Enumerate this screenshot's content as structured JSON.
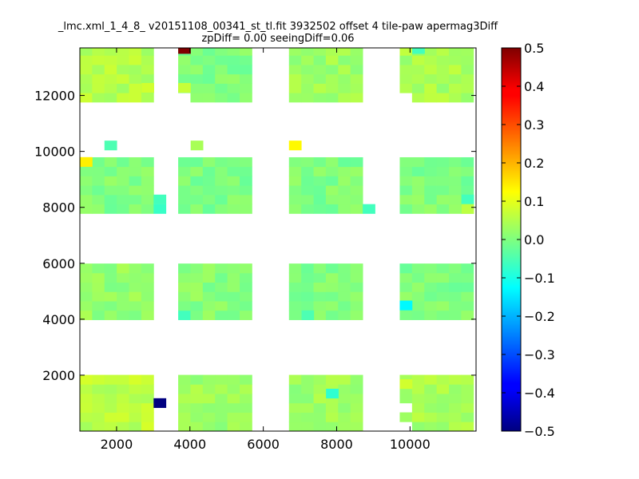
{
  "chart_data": {
    "type": "heatmap",
    "title_line1": "_lmc.xml_1_4_8_ v20151108_00341_st_tl.fit 3932502 offset 4 tile-paw apermag3Diff",
    "title_line2": "zpDiff= 0.00 seeingDiff=0.06",
    "xlabel": "",
    "ylabel": "",
    "xlim": [
      1000,
      11800
    ],
    "ylim": [
      0,
      13700
    ],
    "x_ticks": [
      2000,
      4000,
      6000,
      8000,
      10000
    ],
    "y_ticks": [
      2000,
      4000,
      6000,
      8000,
      10000,
      12000
    ],
    "colorbar": {
      "colormap": "jet",
      "range": [
        -0.5,
        0.5
      ],
      "ticks": [
        "0.5",
        "0.4",
        "0.3",
        "0.2",
        "0.1",
        "0.0",
        "−0.1",
        "−0.2",
        "−0.3",
        "−0.4",
        "−0.5"
      ]
    },
    "cell_size": [
      335,
      335
    ],
    "column_groups": [
      {
        "x_start": 1000,
        "cols": 6
      },
      {
        "x_start": 3680,
        "cols": 6
      },
      {
        "x_start": 6700,
        "cols": 6
      },
      {
        "x_start": 9720,
        "cols": 6
      }
    ],
    "row_groups": [
      {
        "y_start": 0,
        "rows": 6
      },
      {
        "y_start": 3980,
        "rows": 6
      },
      {
        "y_start": 7780,
        "rows": 6
      },
      {
        "y_start": 11760,
        "rows": 6
      }
    ],
    "base_value": 0.0,
    "group_values": [
      [
        0.06,
        0.03,
        0.03,
        0.04
      ],
      [
        0.02,
        0.01,
        0.0,
        0.0
      ],
      [
        0.0,
        0.0,
        0.0,
        0.0
      ],
      [
        0.05,
        0.0,
        0.03,
        0.04
      ]
    ],
    "special_cells": [
      {
        "x": 3680,
        "y": 13500,
        "value": 0.5
      },
      {
        "x": 3010,
        "y": 840,
        "value": -0.5
      },
      {
        "x": 9720,
        "y": 4330,
        "value": -0.13
      },
      {
        "x": 1000,
        "y": 9460,
        "value": 0.14
      },
      {
        "x": 6700,
        "y": 10050,
        "value": 0.13
      },
      {
        "x": 1670,
        "y": 10050,
        "value": -0.05
      },
      {
        "x": 4020,
        "y": 10050,
        "value": 0.04
      },
      {
        "x": 3010,
        "y": 7780,
        "value": -0.07
      },
      {
        "x": 3010,
        "y": 8120,
        "value": -0.06
      },
      {
        "x": 8710,
        "y": 7780,
        "value": -0.06
      },
      {
        "x": 7710,
        "y": 1180,
        "value": -0.08
      },
      {
        "x": 3680,
        "y": 3980,
        "value": -0.06
      },
      {
        "x": 7040,
        "y": 3980,
        "value": -0.05
      },
      {
        "x": 2680,
        "y": 12110,
        "value": 0.08
      },
      {
        "x": 3680,
        "y": 12110,
        "value": 0.07
      },
      {
        "x": 11400,
        "y": 8120,
        "value": -0.06
      },
      {
        "x": 11400,
        "y": 7780,
        "value": 0.06
      },
      {
        "x": 10060,
        "y": 13500,
        "value": -0.06
      },
      {
        "x": 9720,
        "y": 1520,
        "value": 0.08
      }
    ],
    "missing_cells": [
      {
        "x": 3010,
        "y": 0
      },
      {
        "x": 3010,
        "y": 1520
      },
      {
        "x": 3010,
        "y": 1860
      },
      {
        "x": 3010,
        "y": 4330
      },
      {
        "x": 3010,
        "y": 4670
      },
      {
        "x": 3010,
        "y": 5010
      },
      {
        "x": 3010,
        "y": 5350
      },
      {
        "x": 3010,
        "y": 5690
      },
      {
        "x": 3680,
        "y": 4670
      },
      {
        "x": 3680,
        "y": 5010
      },
      {
        "x": 3680,
        "y": 5350
      },
      {
        "x": 3680,
        "y": 5690
      },
      {
        "x": 3680,
        "y": 11760
      },
      {
        "x": 3680,
        "y": 12450
      },
      {
        "x": 3680,
        "y": 12790
      },
      {
        "x": 3680,
        "y": 13130
      },
      {
        "x": 3680,
        "y": 8120
      },
      {
        "x": 3680,
        "y": 8460
      },
      {
        "x": 3680,
        "y": 8800
      },
      {
        "x": 3680,
        "y": 9140
      },
      {
        "x": 3010,
        "y": 8460
      },
      {
        "x": 3010,
        "y": 8800
      },
      {
        "x": 3010,
        "y": 9140
      },
      {
        "x": 3010,
        "y": 9460
      },
      {
        "x": 4020,
        "y": 12450
      },
      {
        "x": 4020,
        "y": 12790
      },
      {
        "x": 4020,
        "y": 13130
      },
      {
        "x": 4020,
        "y": 13500
      },
      {
        "x": 3010,
        "y": 13500
      },
      {
        "x": 3010,
        "y": 13130
      },
      {
        "x": 2680,
        "y": 11760
      },
      {
        "x": 6700,
        "y": 12450
      },
      {
        "x": 6700,
        "y": 12790
      },
      {
        "x": 6700,
        "y": 13130
      },
      {
        "x": 7040,
        "y": 12790
      },
      {
        "x": 7040,
        "y": 13130
      },
      {
        "x": 8380,
        "y": 11760
      },
      {
        "x": 8710,
        "y": 11760
      },
      {
        "x": 8710,
        "y": 12110
      },
      {
        "x": 8710,
        "y": 12450
      },
      {
        "x": 8710,
        "y": 12790
      },
      {
        "x": 8710,
        "y": 5690
      },
      {
        "x": 8710,
        "y": 5350
      },
      {
        "x": 8710,
        "y": 9460
      },
      {
        "x": 8380,
        "y": 9460
      },
      {
        "x": 9720,
        "y": 11760
      },
      {
        "x": 9720,
        "y": 12110
      },
      {
        "x": 9720,
        "y": 12450
      },
      {
        "x": 9720,
        "y": 12790
      },
      {
        "x": 9720,
        "y": 13130
      },
      {
        "x": 9720,
        "y": 13500
      },
      {
        "x": 10060,
        "y": 12110
      },
      {
        "x": 10060,
        "y": 12450
      },
      {
        "x": 10060,
        "y": 12790
      },
      {
        "x": 9720,
        "y": 8120
      },
      {
        "x": 9720,
        "y": 8460
      },
      {
        "x": 9720,
        "y": 8800
      },
      {
        "x": 9720,
        "y": 9140
      },
      {
        "x": 9720,
        "y": 9460
      },
      {
        "x": 9720,
        "y": 5350
      },
      {
        "x": 9720,
        "y": 5690
      },
      {
        "x": 9720,
        "y": 0
      },
      {
        "x": 9720,
        "y": 340
      },
      {
        "x": 9720,
        "y": 670
      },
      {
        "x": 9720,
        "y": 1010
      },
      {
        "x": 9720,
        "y": 1860
      },
      {
        "x": 11400,
        "y": 8460
      }
    ]
  }
}
